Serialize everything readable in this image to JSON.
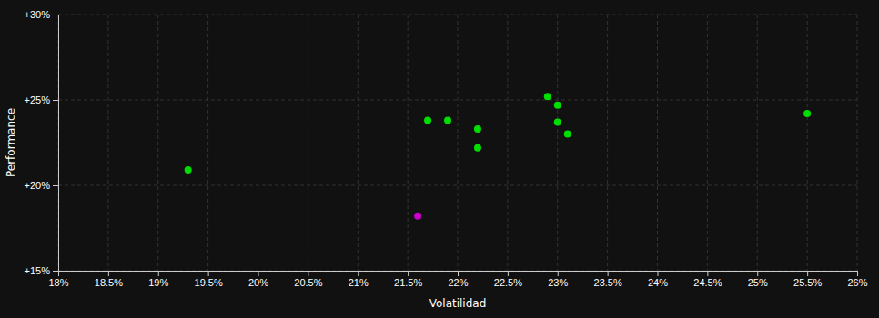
{
  "chart_data": {
    "type": "scatter",
    "xlabel": "Volatilidad",
    "ylabel": "Performance",
    "xlim": [
      0.18,
      0.26
    ],
    "ylim": [
      0.15,
      0.3
    ],
    "xticks": [
      {
        "value": 0.18,
        "label": "18%"
      },
      {
        "value": 0.185,
        "label": "18.5%"
      },
      {
        "value": 0.19,
        "label": "19%"
      },
      {
        "value": 0.195,
        "label": "19.5%"
      },
      {
        "value": 0.2,
        "label": "20%"
      },
      {
        "value": 0.205,
        "label": "20.5%"
      },
      {
        "value": 0.21,
        "label": "21%"
      },
      {
        "value": 0.215,
        "label": "21.5%"
      },
      {
        "value": 0.22,
        "label": "22%"
      },
      {
        "value": 0.225,
        "label": "22.5%"
      },
      {
        "value": 0.23,
        "label": "23%"
      },
      {
        "value": 0.235,
        "label": "23.5%"
      },
      {
        "value": 0.24,
        "label": "24%"
      },
      {
        "value": 0.245,
        "label": "24.5%"
      },
      {
        "value": 0.25,
        "label": "25%"
      },
      {
        "value": 0.255,
        "label": "25.5%"
      },
      {
        "value": 0.26,
        "label": "26%"
      }
    ],
    "yticks": [
      {
        "value": 0.15,
        "label": "+15%"
      },
      {
        "value": 0.2,
        "label": "+20%"
      },
      {
        "value": 0.25,
        "label": "+25%"
      },
      {
        "value": 0.3,
        "label": "+30%"
      }
    ],
    "grid": true,
    "series": [
      {
        "color": "#00dd00",
        "x": [
          0.193,
          0.217,
          0.219,
          0.222,
          0.222,
          0.229,
          0.23,
          0.23,
          0.231,
          0.255
        ],
        "values": [
          0.209,
          0.238,
          0.238,
          0.233,
          0.222,
          0.252,
          0.247,
          0.237,
          0.23,
          0.242
        ]
      },
      {
        "color": "#cc00cc",
        "x": [
          0.216
        ],
        "values": [
          0.182
        ]
      }
    ]
  }
}
